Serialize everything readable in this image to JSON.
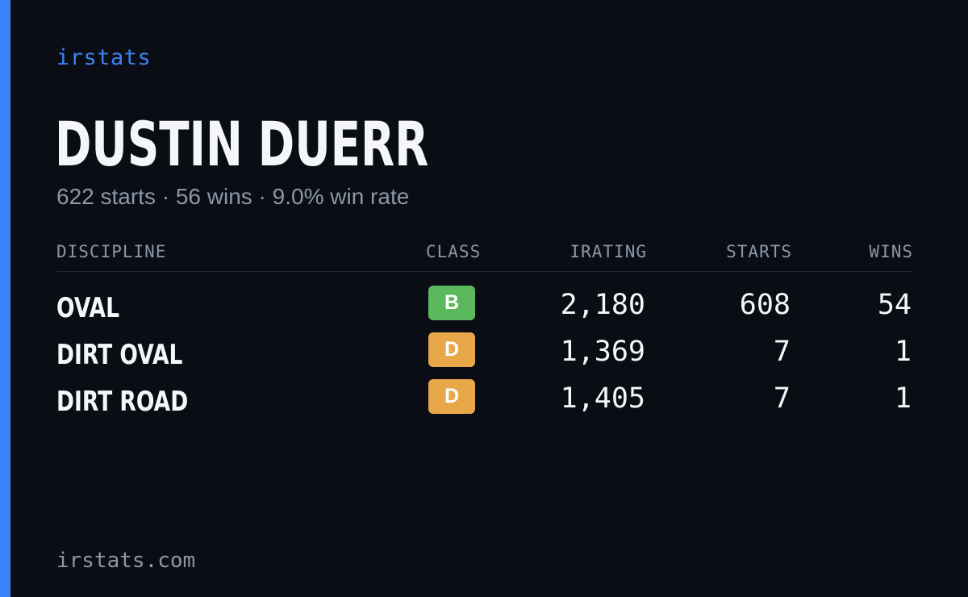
{
  "brand": "irstats",
  "driver": {
    "name": "DUSTIN DUERR",
    "summary": "622 starts · 56 wins · 9.0% win rate"
  },
  "table": {
    "headers": {
      "discipline": "DISCIPLINE",
      "class": "CLASS",
      "irating": "IRATING",
      "starts": "STARTS",
      "wins": "WINS"
    },
    "rows": [
      {
        "discipline": "OVAL",
        "class": "B",
        "class_color": "#5cb85c",
        "irating": "2,180",
        "starts": "608",
        "wins": "54"
      },
      {
        "discipline": "DIRT OVAL",
        "class": "D",
        "class_color": "#e8a849",
        "irating": "1,369",
        "starts": "7",
        "wins": "1"
      },
      {
        "discipline": "DIRT ROAD",
        "class": "D",
        "class_color": "#e8a849",
        "irating": "1,405",
        "starts": "7",
        "wins": "1"
      }
    ]
  },
  "footer": "irstats.com",
  "colors": {
    "accent": "#3b82f6",
    "background": "#0a0d14",
    "muted": "#8b97a8"
  }
}
